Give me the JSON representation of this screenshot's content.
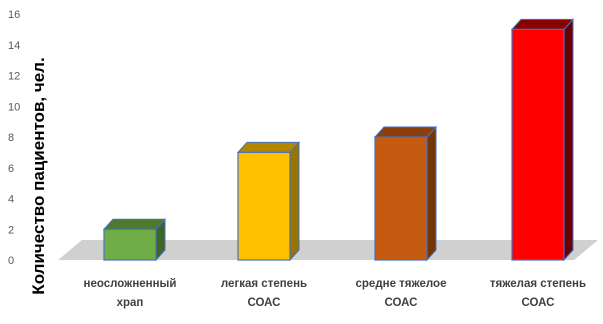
{
  "chart_data": {
    "type": "bar",
    "style": "3d-column",
    "categories": [
      [
        "неосложненный",
        "храп"
      ],
      [
        "легкая степень",
        "СОАС"
      ],
      [
        "средне тяжелое",
        "СОАС"
      ],
      [
        "тяжелая степень",
        "СОАС"
      ]
    ],
    "values": [
      2,
      7,
      8,
      15
    ],
    "ylabel": "Количество пациентов, чел.",
    "ylim": [
      0,
      16
    ],
    "yticks": [
      0,
      2,
      4,
      6,
      8,
      10,
      12,
      14,
      16
    ],
    "grid": false,
    "legend": "none",
    "colors": {
      "bars": [
        {
          "front": "#70AD47",
          "top": "#4E7A2E",
          "side": "#3F6424"
        },
        {
          "front": "#FFC000",
          "top": "#B28600",
          "side": "#997300"
        },
        {
          "front": "#C55A11",
          "top": "#8A3F0C",
          "side": "#73350A"
        },
        {
          "front": "#FF0000",
          "top": "#8B0000",
          "side": "#6B0000"
        }
      ],
      "edge": "#4472C4",
      "floor": "#D0D0D0"
    }
  }
}
